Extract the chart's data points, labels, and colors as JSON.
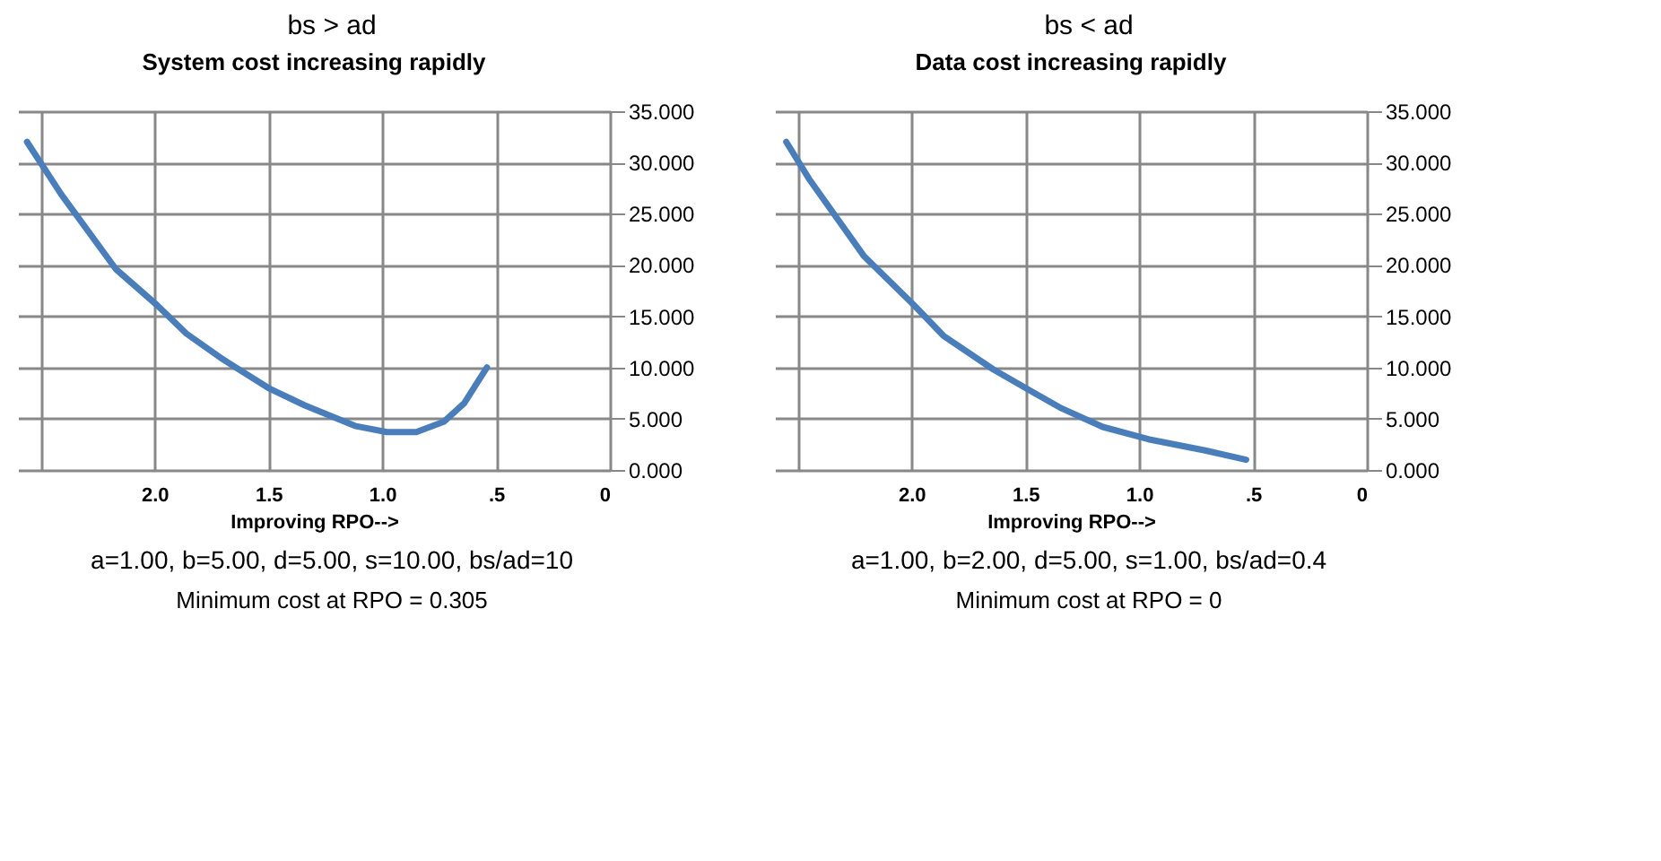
{
  "chart_data": [
    {
      "type": "line",
      "title": "System cost increasing rapidly",
      "xlabel": "Improving RPO-->",
      "annotations": [
        "bs > ad",
        "a=1.00, b=5.00, d=5.00, s=10.00, bs/ad=10",
        "Minimum cost at RPO = 0.305"
      ],
      "series": [
        {
          "color": "#4a7ebb",
          "x": [
            2.56,
            2.41,
            2.17,
            1.99,
            1.86,
            1.7,
            1.5,
            1.34,
            1.12,
            0.98,
            0.85,
            0.73,
            0.64,
            0.54
          ],
          "values": [
            32.0,
            26.9,
            19.6,
            16.1,
            13.3,
            10.8,
            8.0,
            6.3,
            4.3,
            3.7,
            3.7,
            4.7,
            6.5,
            10.0
          ]
        }
      ],
      "xlim": [
        2.6,
        0
      ],
      "xticks": [
        {
          "value": 2.5,
          "label": null
        },
        {
          "value": 2.0,
          "label": "2.0"
        },
        {
          "value": 1.5,
          "label": "1.5"
        },
        {
          "value": 1.0,
          "label": "1.0"
        },
        {
          "value": 0.5,
          "label": ".5"
        },
        0
      ],
      "ylim": [
        0,
        35
      ],
      "yticks": [
        {
          "value": 0,
          "label": "0.000"
        },
        {
          "value": 5,
          "label": "5.000"
        },
        {
          "value": 10,
          "label": "10.000"
        },
        {
          "value": 15,
          "label": "15.000"
        },
        {
          "value": 20,
          "label": "20.000"
        },
        {
          "value": 25,
          "label": "25.000"
        },
        {
          "value": 30,
          "label": "30.000"
        },
        {
          "value": 35,
          "label": "35.000"
        }
      ],
      "grid": true,
      "marker": "none",
      "line_style": "solid"
    },
    {
      "type": "line",
      "title": "Data cost increasing rapidly",
      "xlabel": "Improving RPO-->",
      "annotations": [
        "bs < ad",
        "a=1.00, b=2.00, d=5.00, s=1.00, bs/ad=0.4",
        "Minimum cost at RPO = 0"
      ],
      "series": [
        {
          "color": "#4a7ebb",
          "x": [
            2.55,
            2.45,
            2.21,
            1.99,
            1.86,
            1.64,
            1.46,
            1.34,
            1.16,
            0.96,
            0.8,
            0.71,
            0.53
          ],
          "values": [
            32.0,
            28.4,
            20.9,
            16.1,
            13.1,
            9.8,
            7.5,
            6.0,
            4.2,
            3.0,
            2.3,
            1.9,
            1.0
          ]
        }
      ],
      "xlim": [
        2.6,
        0
      ],
      "xticks": [
        {
          "value": 2.5,
          "label": null
        },
        {
          "value": 2.0,
          "label": "2.0"
        },
        {
          "value": 1.5,
          "label": "1.5"
        },
        {
          "value": 1.0,
          "label": "1.0"
        },
        {
          "value": 0.5,
          "label": ".5"
        },
        0
      ],
      "ylim": [
        0,
        35
      ],
      "yticks": [
        {
          "value": 0,
          "label": "0.000"
        },
        {
          "value": 5,
          "label": "5.000"
        },
        {
          "value": 10,
          "label": "10.000"
        },
        {
          "value": 15,
          "label": "15.000"
        },
        {
          "value": 20,
          "label": "20.000"
        },
        {
          "value": 25,
          "label": "25.000"
        },
        {
          "value": 30,
          "label": "30.000"
        },
        {
          "value": 35,
          "label": "35.000"
        }
      ],
      "grid": true,
      "marker": "none",
      "line_style": "solid"
    }
  ]
}
